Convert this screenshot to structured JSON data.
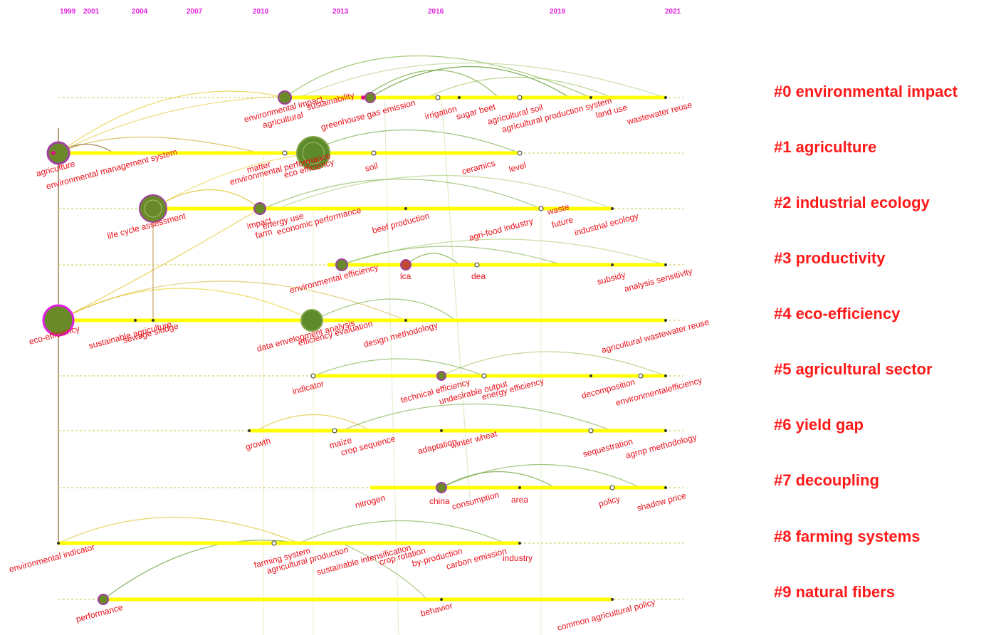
{
  "years": [
    "1999",
    "2001",
    "2004",
    "2007",
    "2010",
    "2013",
    "2016",
    "2019",
    "2021"
  ],
  "clusters": [
    {
      "id": "#0 environmental impact"
    },
    {
      "id": "#1 agriculture"
    },
    {
      "id": "#2 industrial ecology"
    },
    {
      "id": "#3 productivity"
    },
    {
      "id": "#4 eco-efficiency"
    },
    {
      "id": "#5 agricultural sector"
    },
    {
      "id": "#6 yield gap"
    },
    {
      "id": "#7 decoupling"
    },
    {
      "id": "#8 farming systems"
    },
    {
      "id": "#9 natural fibers"
    }
  ],
  "terms": {
    "row0": [
      "environmental impact",
      "agricultural",
      "sustainability",
      "greenhouse gas emission",
      "irrigation",
      "sugar beet",
      "agricultural soil",
      "agricultural production system",
      "land use",
      "wastewater reuse"
    ],
    "row1": [
      "agriculture",
      "environmental management system",
      "matter",
      "environmental performance",
      "eco efficiency",
      "soil",
      "ceramics",
      "level"
    ],
    "row2": [
      "life cycle assessment",
      "impact",
      "energy use",
      "farm",
      "economic performance",
      "beef production",
      "agri-food industry",
      "waste",
      "future",
      "industrial ecology"
    ],
    "row3": [
      "environmental efficiency",
      "lca",
      "dea",
      "subsidy",
      "analysis sensitivity"
    ],
    "row4": [
      "eco-efficiency",
      "sustainable agriculture",
      "sewage sludge",
      "data envelopment analysis",
      "efficiency evaluation",
      "design methodology",
      "agricultural wastewater reuse"
    ],
    "row5": [
      "indicator",
      "technical efficiency",
      "undesirable output",
      "energy efficiency",
      "decomposition",
      "environmentalefficiency"
    ],
    "row6": [
      "growth",
      "maize",
      "crop sequence",
      "adaptation",
      "winter wheat",
      "sequestration",
      "agrnp methodology"
    ],
    "row7": [
      "nitrogen",
      "china",
      "consumption",
      "area",
      "policy",
      "shadow price"
    ],
    "row8": [
      "environmental indicator",
      "farming system",
      "agricultural production",
      "sustainable intensification",
      "crop rotation",
      "by-production",
      "carbon emission",
      "industry"
    ],
    "row9": [
      "performance",
      "behavior",
      "common agricultural policy"
    ]
  }
}
